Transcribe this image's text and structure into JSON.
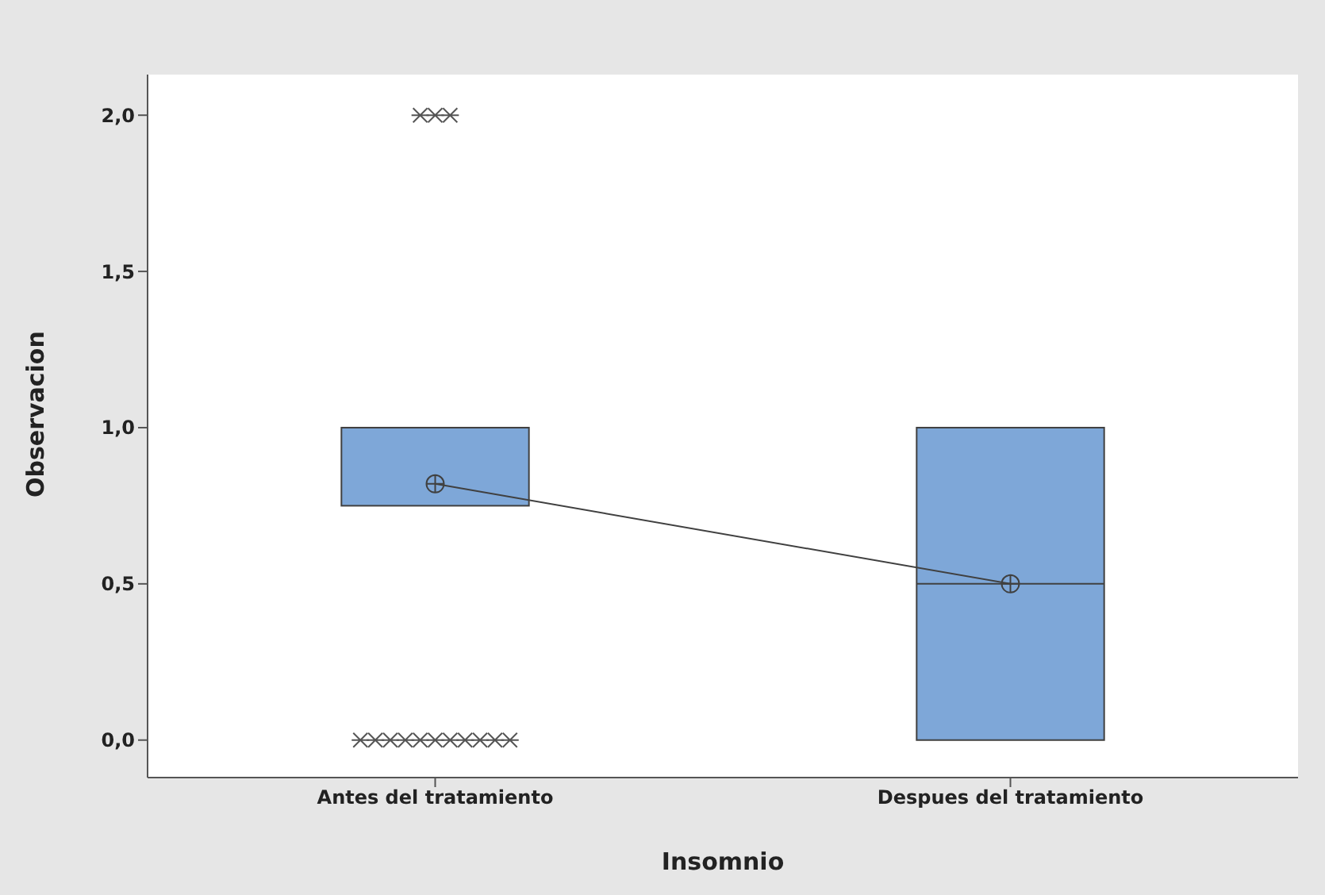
{
  "chart_data": {
    "type": "box",
    "xlabel": "Insomnio",
    "ylabel": "Observacion",
    "categories": [
      "Antes del tratamiento",
      "Despues del tratamiento"
    ],
    "boxes": [
      {
        "low": 0.75,
        "q1": 0.75,
        "median": 1.0,
        "q3": 1.0,
        "high": 1.0,
        "outliers": [
          2.0,
          2.0,
          2.0,
          0.0,
          0.0,
          0.0,
          0.0,
          0.0,
          0.0,
          0.0,
          0.0,
          0.0,
          0.0,
          0.0
        ]
      },
      {
        "low": 0.0,
        "q1": 0.0,
        "median": 0.5,
        "q3": 1.0,
        "high": 1.0
      }
    ],
    "series": [
      {
        "type": "line",
        "values": [
          0.82,
          0.5
        ],
        "color": "#404040",
        "marker": "circle"
      }
    ],
    "color": "#7ea7d8",
    "ylim": [
      -0.12,
      2.13
    ],
    "yticks": [
      {
        "value": 0,
        "label": "0,0"
      },
      {
        "value": 0.5,
        "label": "0,5"
      },
      {
        "value": 1,
        "label": "1,0"
      },
      {
        "value": 1.5,
        "label": "1,5"
      },
      {
        "value": 2,
        "label": "2,0"
      }
    ],
    "grid": false,
    "legend": false
  }
}
